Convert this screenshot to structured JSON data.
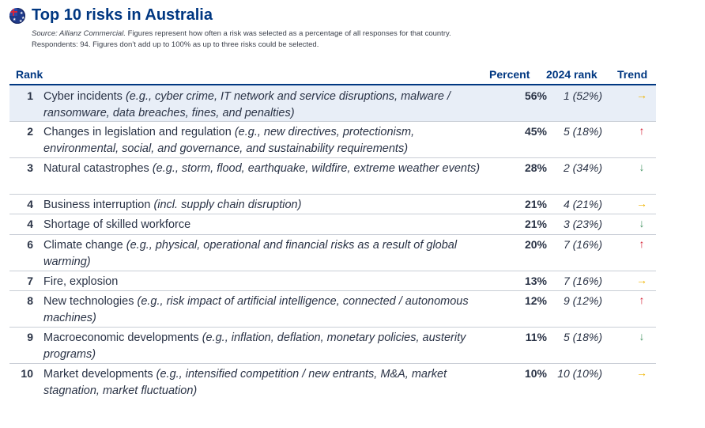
{
  "title": "Top 10 risks in Australia",
  "source_label": "Source: Allianz Commercial.",
  "source_rest": " Figures represent how often a risk was selected as a percentage of all responses for that country.",
  "source_line2": "Respondents: 94. Figures don’t add up to 100% as up to three risks could be selected.",
  "headers": {
    "rank": "Rank",
    "percent": "Percent",
    "prev": "2024 rank",
    "trend": "Trend"
  },
  "colors": {
    "brand": "#003781",
    "trend_same": "#f0b400",
    "trend_up": "#d6263a",
    "trend_down": "#4d9a6a"
  },
  "rows": [
    {
      "rank": "1",
      "name": "Cyber incidents ",
      "examples": "(e.g., cyber crime, IT network and service disruptions, malware / ransomware, data breaches, fines, and penalties)",
      "percent": "56%",
      "prev": "1 (52%)",
      "trend": "→",
      "trend_dir": "same"
    },
    {
      "rank": "2",
      "name": "Changes in legislation and regulation ",
      "examples": "(e.g., new directives, protectionism, environmental, social, and governance, and sustainability requirements)",
      "percent": "45%",
      "prev": "5 (18%)",
      "trend": "↑",
      "trend_dir": "up"
    },
    {
      "rank": "3",
      "name": "Natural catastrophes ",
      "examples": "(e.g., storm, flood, earthquake, wildfire, extreme weather events)",
      "percent": "28%",
      "prev": "2 (34%)",
      "trend": "↓",
      "trend_dir": "down"
    },
    {
      "rank": "4",
      "name": "Business interruption ",
      "examples": "(incl. supply chain disruption)",
      "percent": "21%",
      "prev": "4 (21%)",
      "trend": "→",
      "trend_dir": "same"
    },
    {
      "rank": "4",
      "name": "Shortage of skilled workforce",
      "examples": "",
      "percent": "21%",
      "prev": "3 (23%)",
      "trend": "↓",
      "trend_dir": "down"
    },
    {
      "rank": "6",
      "name": "Climate change ",
      "examples": "(e.g., physical, operational and financial risks as a result of global warming)",
      "percent": "20%",
      "prev": "7 (16%)",
      "trend": "↑",
      "trend_dir": "up"
    },
    {
      "rank": "7",
      "name": "Fire, explosion",
      "examples": "",
      "percent": "13%",
      "prev": "7 (16%)",
      "trend": "→",
      "trend_dir": "same"
    },
    {
      "rank": "8",
      "name": "New technologies ",
      "examples": "(e.g., risk impact of artificial intelligence, connected / autonomous machines)",
      "percent": "12%",
      "prev": "9 (12%)",
      "trend": "↑",
      "trend_dir": "up"
    },
    {
      "rank": "9",
      "name": "Macroeconomic developments ",
      "examples": "(e.g., inflation, deflation, monetary policies, austerity programs)",
      "percent": "11%",
      "prev": "5 (18%)",
      "trend": "↓",
      "trend_dir": "down"
    },
    {
      "rank": "10",
      "name": "Market developments ",
      "examples": "(e.g., intensified competition / new entrants, M&A, market stagnation, market fluctuation)",
      "percent": "10%",
      "prev": "10 (10%)",
      "trend": "→",
      "trend_dir": "same"
    }
  ]
}
